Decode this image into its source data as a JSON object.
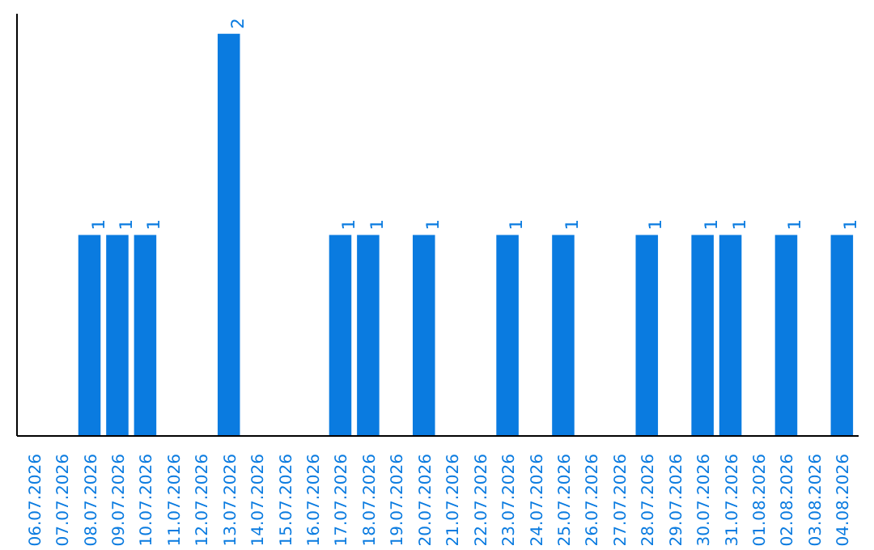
{
  "chart_data": {
    "type": "bar",
    "categories": [
      "06.07.2026",
      "07.07.2026",
      "08.07.2026",
      "09.07.2026",
      "10.07.2026",
      "11.07.2026",
      "12.07.2026",
      "13.07.2026",
      "14.07.2026",
      "15.07.2026",
      "16.07.2026",
      "17.07.2026",
      "18.07.2026",
      "19.07.2026",
      "20.07.2026",
      "21.07.2026",
      "22.07.2026",
      "23.07.2026",
      "24.07.2026",
      "25.07.2026",
      "26.07.2026",
      "27.07.2026",
      "28.07.2026",
      "29.07.2026",
      "30.07.2026",
      "31.07.2026",
      "01.08.2026",
      "02.08.2026",
      "03.08.2026",
      "04.08.2026"
    ],
    "values": [
      0,
      0,
      1,
      1,
      1,
      0,
      0,
      2,
      0,
      0,
      0,
      1,
      1,
      0,
      1,
      0,
      0,
      1,
      0,
      1,
      0,
      0,
      1,
      0,
      1,
      1,
      0,
      1,
      0,
      1
    ],
    "value_labels": [
      null,
      null,
      "1",
      "1",
      "1",
      null,
      null,
      "2",
      null,
      null,
      null,
      "1",
      "1",
      null,
      "1",
      null,
      null,
      "1",
      null,
      "1",
      null,
      null,
      "1",
      null,
      "1",
      "1",
      null,
      "1",
      null,
      "1"
    ],
    "color": "#0a7be0",
    "ylim": [
      0,
      2.1
    ],
    "tick_labels": "x",
    "grid": false
  }
}
